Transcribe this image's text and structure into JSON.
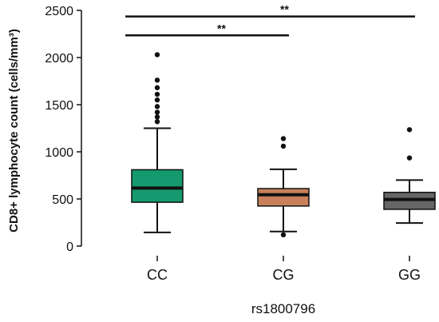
{
  "chart_data": {
    "type": "box",
    "title": "",
    "xlabel": "rs1800796",
    "ylabel": "CD8+ lymphocyte count (cells/mm³)",
    "ylim": [
      0,
      2500
    ],
    "yticks": [
      0,
      500,
      1000,
      1500,
      2000,
      2500
    ],
    "grid": false,
    "categories": [
      "CC",
      "CG",
      "GG"
    ],
    "boxes": [
      {
        "category": "CC",
        "color": "#15996f",
        "whisker_low": 145,
        "q1": 465,
        "median": 615,
        "q3": 810,
        "whisker_high": 1250,
        "outliers": [
          1320,
          1370,
          1420,
          1480,
          1550,
          1610,
          1680,
          1760,
          2030
        ]
      },
      {
        "category": "CG",
        "color": "#c8805a",
        "whisker_low": 155,
        "q1": 425,
        "median": 545,
        "q3": 610,
        "whisker_high": 815,
        "outliers": [
          120,
          1060,
          1140
        ]
      },
      {
        "category": "GG",
        "color": "#666666",
        "whisker_low": 245,
        "q1": 390,
        "median": 495,
        "q3": 570,
        "whisker_high": 700,
        "outliers": [
          935,
          1235
        ]
      }
    ],
    "significance": [
      {
        "from": "CC",
        "to": "CG",
        "label": "**",
        "level": 2235
      },
      {
        "from": "CC",
        "to": "GG",
        "label": "**",
        "level": 2435
      }
    ]
  }
}
